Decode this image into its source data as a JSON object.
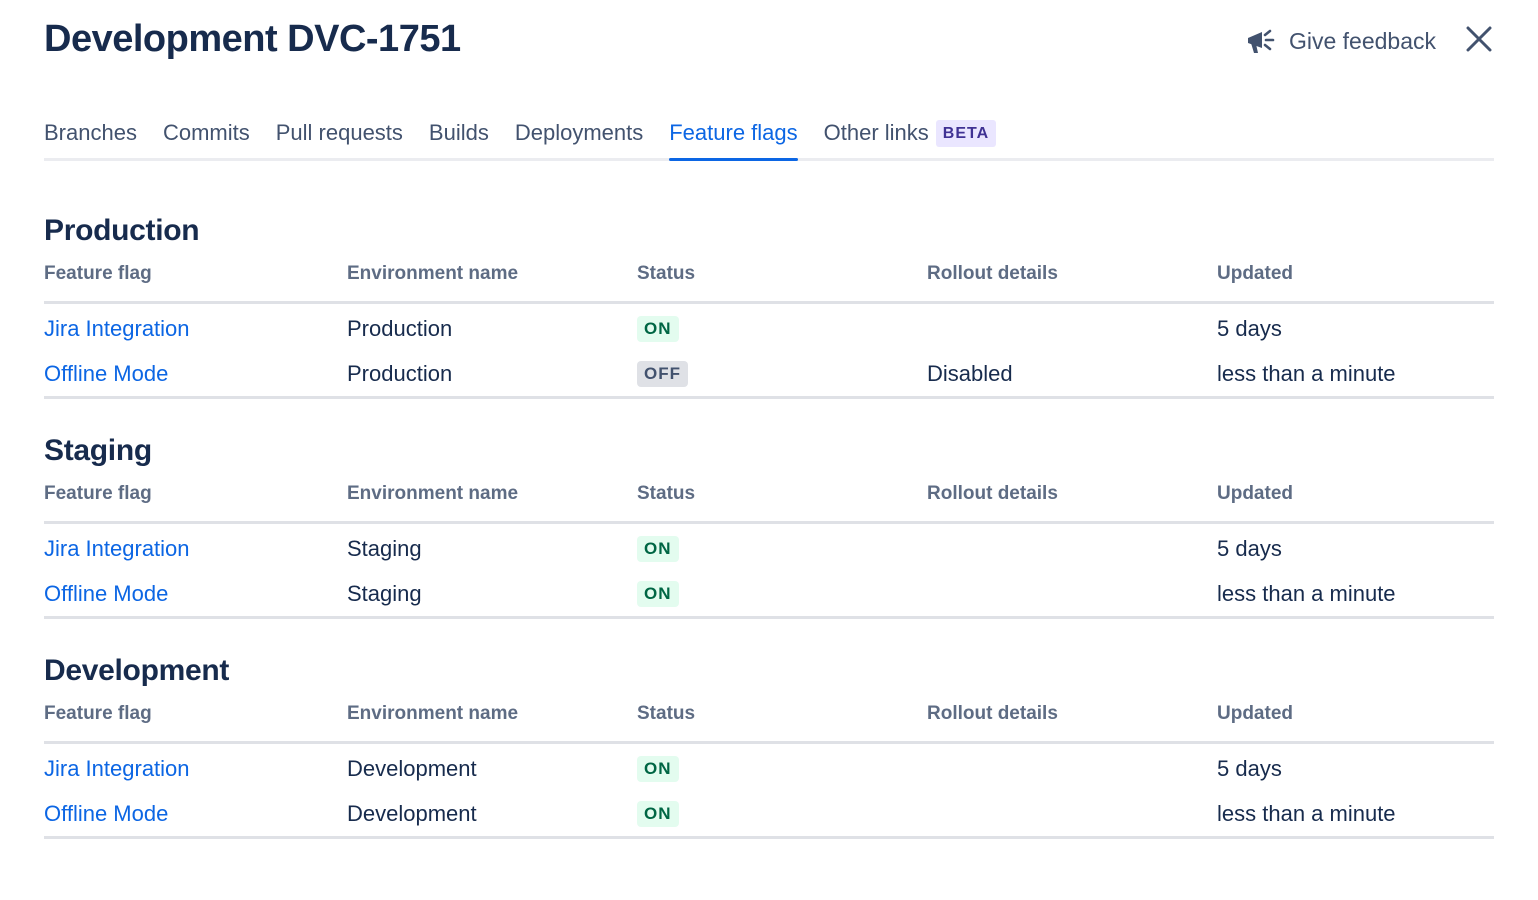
{
  "header": {
    "title": "Development DVC-1751",
    "feedback_label": "Give feedback",
    "feedback_icon": "megaphone-icon",
    "close_icon": "close-icon"
  },
  "tabs": [
    {
      "label": "Branches"
    },
    {
      "label": "Commits"
    },
    {
      "label": "Pull requests"
    },
    {
      "label": "Builds"
    },
    {
      "label": "Deployments"
    },
    {
      "label": "Feature flags",
      "active": true
    },
    {
      "label": "Other links",
      "badge": "BETA"
    }
  ],
  "columns": [
    "Feature flag",
    "Environment name",
    "Status",
    "Rollout details",
    "Updated"
  ],
  "sections": [
    {
      "title": "Production",
      "rows": [
        {
          "flag": "Jira Integration",
          "environment": "Production",
          "status": "ON",
          "rollout": "",
          "updated": "5 days"
        },
        {
          "flag": "Offline Mode",
          "environment": "Production",
          "status": "OFF",
          "rollout": "Disabled",
          "updated": "less than a minute"
        }
      ]
    },
    {
      "title": "Staging",
      "rows": [
        {
          "flag": "Jira Integration",
          "environment": "Staging",
          "status": "ON",
          "rollout": "",
          "updated": "5 days"
        },
        {
          "flag": "Offline Mode",
          "environment": "Staging",
          "status": "ON",
          "rollout": "",
          "updated": "less than a minute"
        }
      ]
    },
    {
      "title": "Development",
      "rows": [
        {
          "flag": "Jira Integration",
          "environment": "Development",
          "status": "ON",
          "rollout": "",
          "updated": "5 days"
        },
        {
          "flag": "Offline Mode",
          "environment": "Development",
          "status": "ON",
          "rollout": "",
          "updated": "less than a minute"
        }
      ]
    }
  ],
  "colors": {
    "text": "#172b4d",
    "link": "#0c66e4",
    "muted": "#5e6c84",
    "on_bg": "#e3fcef",
    "on_fg": "#006644",
    "off_bg": "#dfe1e6",
    "off_fg": "#42526e"
  }
}
